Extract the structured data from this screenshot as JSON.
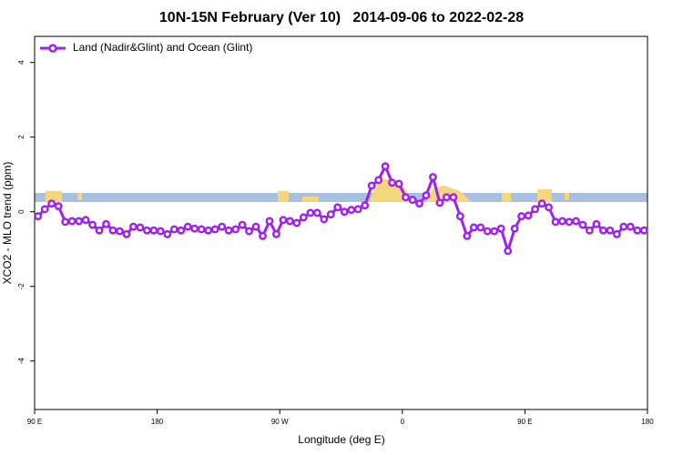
{
  "chart_data": {
    "type": "line",
    "title": "10N-15N February (Ver 10)   2014-09-06 to 2022-02-28",
    "xlabel": "Longitude (deg E)",
    "ylabel": "XCO2 - MLO trend (ppm)",
    "xlim": [
      -270,
      180
    ],
    "xticks": [
      {
        "value": -270,
        "label": "90 E"
      },
      {
        "value": -180,
        "label": "180"
      },
      {
        "value": -90,
        "label": "90 W"
      },
      0,
      {
        "value": 90,
        "label": "90 E"
      },
      180
    ],
    "ylim": [
      -5.3,
      4.7
    ],
    "yticks": [
      -4,
      -2,
      0,
      2,
      4
    ],
    "legend": "top-left",
    "x": [
      -267.5,
      -262.5,
      -257.5,
      -252.5,
      -247.5,
      -242.5,
      -237.5,
      -232.5,
      -227.5,
      -222.5,
      -217.5,
      -212.5,
      -207.5,
      -202.5,
      -197.5,
      -192.5,
      -187.5,
      -182.5,
      -177.5,
      -172.5,
      -167.5,
      -162.5,
      -157.5,
      -152.5,
      -147.5,
      -142.5,
      -137.5,
      -132.5,
      -127.5,
      -122.5,
      -117.5,
      -112.5,
      -107.5,
      -102.5,
      -97.5,
      -92.5,
      -87.5,
      -82.5,
      -77.5,
      -72.5,
      -67.5,
      -62.5,
      -57.5,
      -52.5,
      -47.5,
      -42.5,
      -37.5,
      -32.5,
      -27.5,
      -22.5,
      -17.5,
      -12.5,
      -7.5,
      -2.5,
      2.5,
      7.5,
      12.5,
      17.5,
      22.5,
      27.5,
      32.5,
      37.5,
      42.5,
      47.5,
      52.5,
      57.5,
      62.5,
      67.5,
      72.5,
      77.5,
      82.5,
      87.5,
      92.5,
      97.5,
      102.5,
      107.5,
      112.5,
      117.5,
      122.5,
      127.5,
      132.5,
      137.5,
      142.5,
      147.5,
      152.5,
      157.5,
      162.5,
      167.5,
      172.5,
      177.5
    ],
    "series": [
      {
        "name": "Land (Nadir&Glint) and Ocean (Glint)",
        "color": "#a020f0",
        "values": [
          -0.12,
          0.07,
          0.22,
          0.15,
          -0.27,
          -0.25,
          -0.25,
          -0.22,
          -0.35,
          -0.5,
          -0.33,
          -0.5,
          -0.52,
          -0.6,
          -0.4,
          -0.42,
          -0.5,
          -0.5,
          -0.52,
          -0.6,
          -0.47,
          -0.5,
          -0.4,
          -0.45,
          -0.47,
          -0.5,
          -0.47,
          -0.4,
          -0.5,
          -0.47,
          -0.35,
          -0.52,
          -0.4,
          -0.65,
          -0.25,
          -0.6,
          -0.22,
          -0.25,
          -0.3,
          -0.15,
          -0.03,
          -0.03,
          -0.2,
          -0.07,
          0.12,
          0,
          0.05,
          0.07,
          0.17,
          0.7,
          0.85,
          1.22,
          0.78,
          0.75,
          0.39,
          0.32,
          0.22,
          0.44,
          0.93,
          0.24,
          0.39,
          0.39,
          -0.12,
          -0.65,
          -0.42,
          -0.42,
          -0.52,
          -0.52,
          -0.45,
          -1.05,
          -0.45,
          -0.12,
          -0.1,
          0.07,
          0.22,
          0.12,
          -0.27,
          -0.25,
          -0.27,
          -0.25,
          -0.35,
          -0.5,
          -0.33,
          -0.5,
          -0.5,
          -0.6,
          -0.4,
          -0.4,
          -0.5,
          -0.5
        ]
      }
    ]
  }
}
